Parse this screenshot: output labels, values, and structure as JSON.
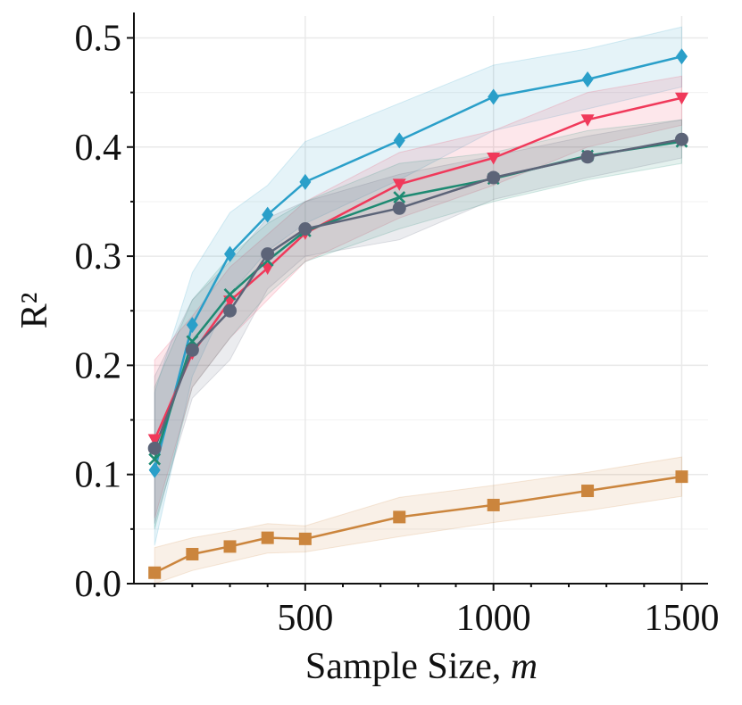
{
  "chart_data": {
    "type": "line",
    "title": "",
    "xlabel": "Sample Size, ",
    "xlabel_var": "m",
    "ylabel": "R²",
    "xlim": [
      45,
      1570
    ],
    "ylim": [
      0.0,
      0.52
    ],
    "xticks": [
      500,
      1000,
      1500
    ],
    "xtick_labels": [
      "500",
      "1000",
      "1500"
    ],
    "yticks": [
      0.0,
      0.1,
      0.2,
      0.3,
      0.4,
      0.5
    ],
    "ytick_labels": [
      "0.0",
      "0.1",
      "0.2",
      "0.3",
      "0.4",
      "0.5"
    ],
    "grid": true,
    "x": [
      100,
      200,
      300,
      400,
      500,
      750,
      1000,
      1250,
      1500
    ],
    "series": [
      {
        "color": "#2a9fc9",
        "marker": "diamond",
        "values": [
          0.104,
          0.237,
          0.302,
          0.338,
          0.368,
          0.406,
          0.446,
          0.462,
          0.483
        ],
        "lower": [
          0.035,
          0.19,
          0.265,
          0.305,
          0.33,
          0.37,
          0.415,
          0.435,
          0.455
        ],
        "upper": [
          0.175,
          0.285,
          0.34,
          0.365,
          0.405,
          0.44,
          0.475,
          0.49,
          0.51
        ]
      },
      {
        "color": "#f0395a",
        "marker": "triangle-down",
        "values": [
          0.132,
          0.211,
          0.259,
          0.289,
          0.321,
          0.366,
          0.39,
          0.425,
          0.445
        ],
        "lower": [
          0.06,
          0.18,
          0.225,
          0.26,
          0.295,
          0.335,
          0.365,
          0.4,
          0.42
        ],
        "upper": [
          0.205,
          0.245,
          0.29,
          0.32,
          0.35,
          0.395,
          0.415,
          0.45,
          0.465
        ]
      },
      {
        "color": "#1e8a72",
        "marker": "x",
        "values": [
          0.114,
          0.222,
          0.265,
          0.296,
          0.323,
          0.354,
          0.371,
          0.392,
          0.405
        ],
        "lower": [
          0.05,
          0.18,
          0.225,
          0.265,
          0.295,
          0.325,
          0.35,
          0.37,
          0.385
        ],
        "upper": [
          0.18,
          0.26,
          0.3,
          0.33,
          0.35,
          0.385,
          0.395,
          0.415,
          0.425
        ]
      },
      {
        "color": "#5c6478",
        "marker": "circle",
        "values": [
          0.124,
          0.214,
          0.25,
          0.302,
          0.325,
          0.344,
          0.372,
          0.391,
          0.407
        ],
        "lower": [
          0.055,
          0.17,
          0.205,
          0.27,
          0.3,
          0.315,
          0.352,
          0.372,
          0.39
        ],
        "upper": [
          0.19,
          0.26,
          0.295,
          0.335,
          0.35,
          0.375,
          0.392,
          0.41,
          0.425
        ]
      },
      {
        "color": "#cb853d",
        "marker": "square",
        "values": [
          0.01,
          0.027,
          0.034,
          0.042,
          0.041,
          0.061,
          0.072,
          0.085,
          0.098
        ],
        "lower": [
          0.0,
          0.012,
          0.02,
          0.028,
          0.029,
          0.043,
          0.056,
          0.067,
          0.08
        ],
        "upper": [
          0.033,
          0.042,
          0.048,
          0.055,
          0.053,
          0.079,
          0.09,
          0.102,
          0.116
        ]
      }
    ]
  }
}
